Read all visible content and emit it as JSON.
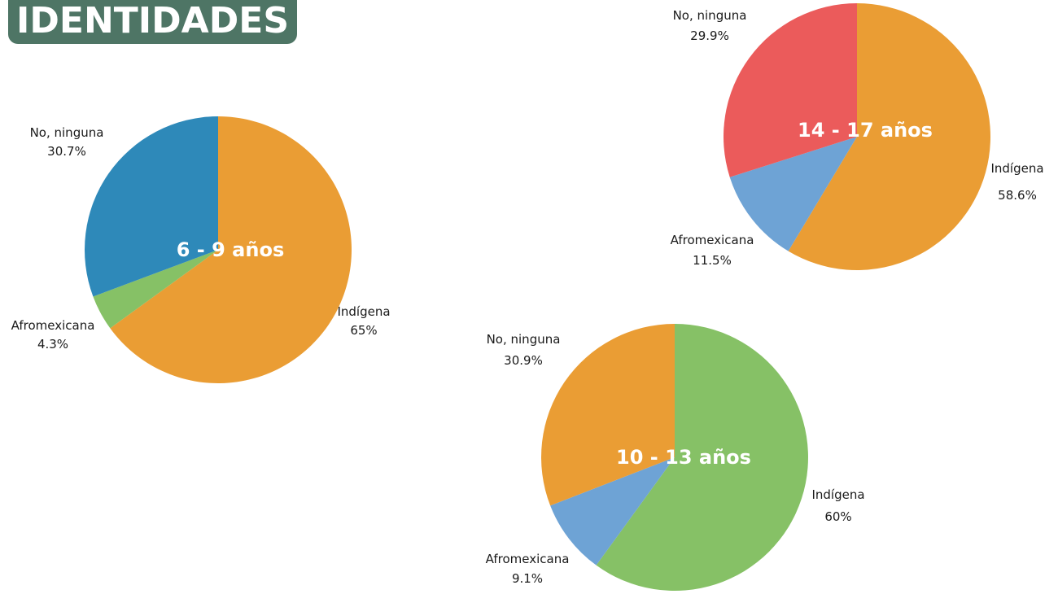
{
  "header": {
    "title": "IDENTIDADES"
  },
  "chart_data": [
    {
      "type": "pie",
      "title": "6 - 9 años",
      "slices": [
        {
          "label": "Indígena",
          "value": 65,
          "display": "65%",
          "color": "#ea9d34"
        },
        {
          "label": "Afromexicana",
          "value": 4.3,
          "display": "4.3%",
          "color": "#86c166"
        },
        {
          "label": "No, ninguna",
          "value": 30.7,
          "display": "30.7%",
          "color": "#2e89b9"
        }
      ]
    },
    {
      "type": "pie",
      "title": "14 - 17 años",
      "slices": [
        {
          "label": "Indígena",
          "value": 58.6,
          "display": "58.6%",
          "color": "#ea9d34"
        },
        {
          "label": "Afromexicana",
          "value": 11.5,
          "display": "11.5%",
          "color": "#6ea3d5"
        },
        {
          "label": "No, ninguna",
          "value": 29.9,
          "display": "29.9%",
          "color": "#eb5b5b"
        }
      ]
    },
    {
      "type": "pie",
      "title": "10 - 13 años",
      "slices": [
        {
          "label": "Indígena",
          "value": 60,
          "display": "60%",
          "color": "#86c166"
        },
        {
          "label": "Afromexicana",
          "value": 9.1,
          "display": "9.1%",
          "color": "#6ea3d5"
        },
        {
          "label": "No, ninguna",
          "value": 30.9,
          "display": "30.9%",
          "color": "#ea9d34"
        }
      ]
    }
  ]
}
